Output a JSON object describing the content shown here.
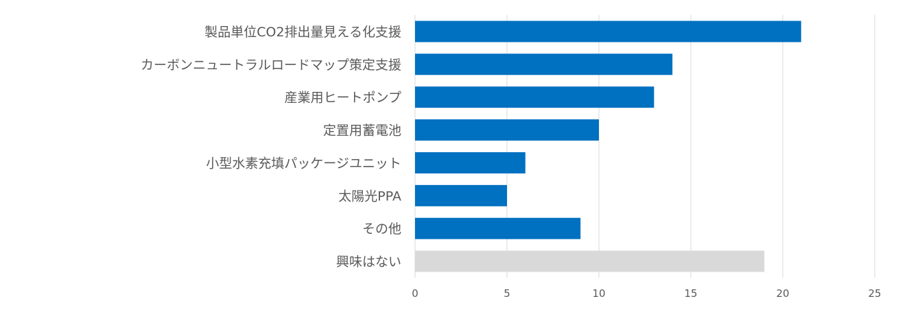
{
  "chart_data": {
    "type": "bar",
    "orientation": "horizontal",
    "categories": [
      "製品単位CO2排出量見える化支援",
      "カーボンニュートラルロードマップ策定支援",
      "産業用ヒートポンプ",
      "定置用蓄電池",
      "小型水素充填パッケージユニット",
      "太陽光PPA",
      "その他",
      "興味はない"
    ],
    "values": [
      21,
      14,
      13,
      10,
      6,
      5,
      9,
      19
    ],
    "bar_colors": [
      "#0070C0",
      "#0070C0",
      "#0070C0",
      "#0070C0",
      "#0070C0",
      "#0070C0",
      "#0070C0",
      "#D9D9D9"
    ],
    "xlim": [
      0,
      25
    ],
    "xticks": [
      0,
      5,
      10,
      15,
      20,
      25
    ],
    "grid": true,
    "title": "",
    "xlabel": "",
    "ylabel": ""
  }
}
